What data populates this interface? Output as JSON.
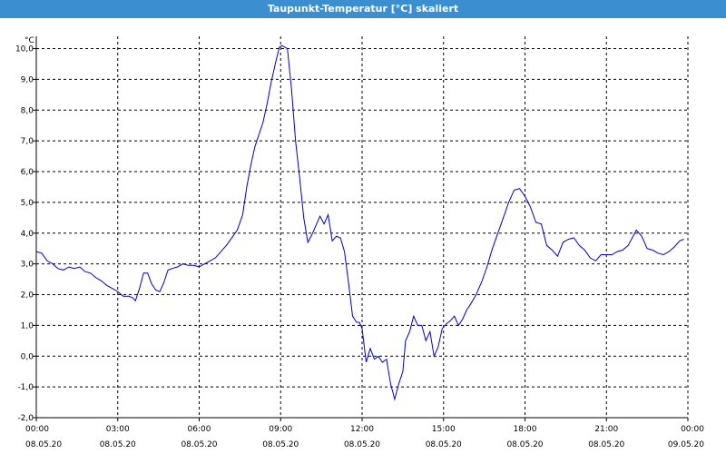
{
  "window": {
    "title": "Taupunkt-Temperatur [°C] skaliert"
  },
  "chart_data": {
    "type": "line",
    "title": "Taupunkt-Temperatur [°C] skaliert",
    "ylabel": "°C",
    "xlabel": "",
    "ylim": [
      -2.0,
      10.4
    ],
    "xlim": [
      0,
      24
    ],
    "grid": true,
    "y_ticks": [
      "-2,0",
      "-1,0",
      "0,0",
      "1,0",
      "2,0",
      "3,0",
      "4,0",
      "5,0",
      "6,0",
      "7,0",
      "8,0",
      "9,0",
      "10,0"
    ],
    "x_ticks": [
      {
        "time": "00:00",
        "date": "08.05.20"
      },
      {
        "time": "03:00",
        "date": "08.05.20"
      },
      {
        "time": "06:00",
        "date": "08.05.20"
      },
      {
        "time": "09:00",
        "date": "08.05.20"
      },
      {
        "time": "12:00",
        "date": "08.05.20"
      },
      {
        "time": "15:00",
        "date": "08.05.20"
      },
      {
        "time": "18:00",
        "date": "08.05.20"
      },
      {
        "time": "21:00",
        "date": "08.05.20"
      },
      {
        "time": "00:00",
        "date": "09.05.20"
      }
    ],
    "series": [
      {
        "color": "#0000cc",
        "points": [
          [
            0.0,
            3.4
          ],
          [
            0.2,
            3.35
          ],
          [
            0.4,
            3.1
          ],
          [
            0.6,
            3.0
          ],
          [
            0.8,
            2.85
          ],
          [
            1.0,
            2.8
          ],
          [
            1.2,
            2.9
          ],
          [
            1.4,
            2.85
          ],
          [
            1.6,
            2.9
          ],
          [
            1.8,
            2.75
          ],
          [
            2.0,
            2.7
          ],
          [
            2.2,
            2.55
          ],
          [
            2.4,
            2.45
          ],
          [
            2.6,
            2.3
          ],
          [
            2.8,
            2.2
          ],
          [
            3.0,
            2.1
          ],
          [
            3.2,
            1.95
          ],
          [
            3.4,
            1.95
          ],
          [
            3.55,
            1.9
          ],
          [
            3.65,
            1.8
          ],
          [
            3.8,
            2.2
          ],
          [
            3.95,
            2.7
          ],
          [
            4.1,
            2.7
          ],
          [
            4.25,
            2.35
          ],
          [
            4.4,
            2.15
          ],
          [
            4.55,
            2.1
          ],
          [
            4.7,
            2.4
          ],
          [
            4.85,
            2.8
          ],
          [
            5.0,
            2.85
          ],
          [
            5.2,
            2.9
          ],
          [
            5.4,
            3.0
          ],
          [
            5.6,
            2.95
          ],
          [
            5.8,
            2.95
          ],
          [
            6.0,
            2.9
          ],
          [
            6.2,
            3.0
          ],
          [
            6.4,
            3.1
          ],
          [
            6.6,
            3.2
          ],
          [
            6.8,
            3.4
          ],
          [
            7.0,
            3.6
          ],
          [
            7.2,
            3.85
          ],
          [
            7.4,
            4.1
          ],
          [
            7.6,
            4.6
          ],
          [
            7.75,
            5.5
          ],
          [
            7.9,
            6.2
          ],
          [
            8.05,
            6.8
          ],
          [
            8.2,
            7.2
          ],
          [
            8.35,
            7.6
          ],
          [
            8.5,
            8.2
          ],
          [
            8.65,
            8.9
          ],
          [
            8.8,
            9.5
          ],
          [
            8.95,
            10.05
          ],
          [
            9.05,
            10.1
          ],
          [
            9.25,
            10.0
          ],
          [
            9.4,
            8.7
          ],
          [
            9.55,
            7.0
          ],
          [
            9.7,
            5.8
          ],
          [
            9.85,
            4.5
          ],
          [
            10.0,
            3.7
          ],
          [
            10.15,
            3.95
          ],
          [
            10.3,
            4.25
          ],
          [
            10.45,
            4.55
          ],
          [
            10.6,
            4.3
          ],
          [
            10.75,
            4.6
          ],
          [
            10.9,
            3.75
          ],
          [
            11.05,
            3.9
          ],
          [
            11.2,
            3.85
          ],
          [
            11.35,
            3.4
          ],
          [
            11.5,
            2.4
          ],
          [
            11.65,
            1.3
          ],
          [
            11.8,
            1.1
          ],
          [
            11.9,
            1.1
          ],
          [
            12.0,
            0.9
          ],
          [
            12.15,
            -0.2
          ],
          [
            12.3,
            0.25
          ],
          [
            12.45,
            -0.1
          ],
          [
            12.6,
            0.0
          ],
          [
            12.75,
            -0.2
          ],
          [
            12.9,
            -0.1
          ],
          [
            13.05,
            -0.9
          ],
          [
            13.2,
            -1.4
          ],
          [
            13.35,
            -0.9
          ],
          [
            13.5,
            -0.5
          ],
          [
            13.6,
            0.5
          ],
          [
            13.75,
            0.8
          ],
          [
            13.9,
            1.3
          ],
          [
            14.05,
            1.0
          ],
          [
            14.2,
            1.0
          ],
          [
            14.35,
            0.5
          ],
          [
            14.5,
            0.8
          ],
          [
            14.65,
            0.0
          ],
          [
            14.8,
            0.3
          ],
          [
            14.95,
            0.9
          ],
          [
            15.1,
            1.05
          ],
          [
            15.25,
            1.15
          ],
          [
            15.4,
            1.3
          ],
          [
            15.55,
            1.0
          ],
          [
            15.7,
            1.2
          ],
          [
            15.85,
            1.5
          ],
          [
            16.0,
            1.7
          ],
          [
            16.2,
            2.0
          ],
          [
            16.4,
            2.4
          ],
          [
            16.6,
            2.9
          ],
          [
            16.8,
            3.5
          ],
          [
            17.0,
            4.0
          ],
          [
            17.2,
            4.5
          ],
          [
            17.4,
            5.0
          ],
          [
            17.6,
            5.4
          ],
          [
            17.8,
            5.45
          ],
          [
            18.0,
            5.2
          ],
          [
            18.2,
            4.85
          ],
          [
            18.4,
            4.35
          ],
          [
            18.6,
            4.3
          ],
          [
            18.8,
            3.6
          ],
          [
            19.0,
            3.45
          ],
          [
            19.2,
            3.25
          ],
          [
            19.4,
            3.7
          ],
          [
            19.6,
            3.8
          ],
          [
            19.8,
            3.85
          ],
          [
            20.0,
            3.6
          ],
          [
            20.2,
            3.45
          ],
          [
            20.4,
            3.2
          ],
          [
            20.6,
            3.1
          ],
          [
            20.8,
            3.3
          ],
          [
            21.0,
            3.3
          ],
          [
            21.2,
            3.3
          ],
          [
            21.4,
            3.4
          ],
          [
            21.6,
            3.45
          ],
          [
            21.8,
            3.6
          ],
          [
            21.95,
            3.85
          ],
          [
            22.1,
            4.1
          ],
          [
            22.3,
            3.9
          ],
          [
            22.5,
            3.5
          ],
          [
            22.7,
            3.45
          ],
          [
            22.9,
            3.35
          ],
          [
            23.1,
            3.3
          ],
          [
            23.3,
            3.4
          ],
          [
            23.5,
            3.55
          ],
          [
            23.7,
            3.75
          ],
          [
            23.85,
            3.8
          ]
        ]
      }
    ]
  }
}
